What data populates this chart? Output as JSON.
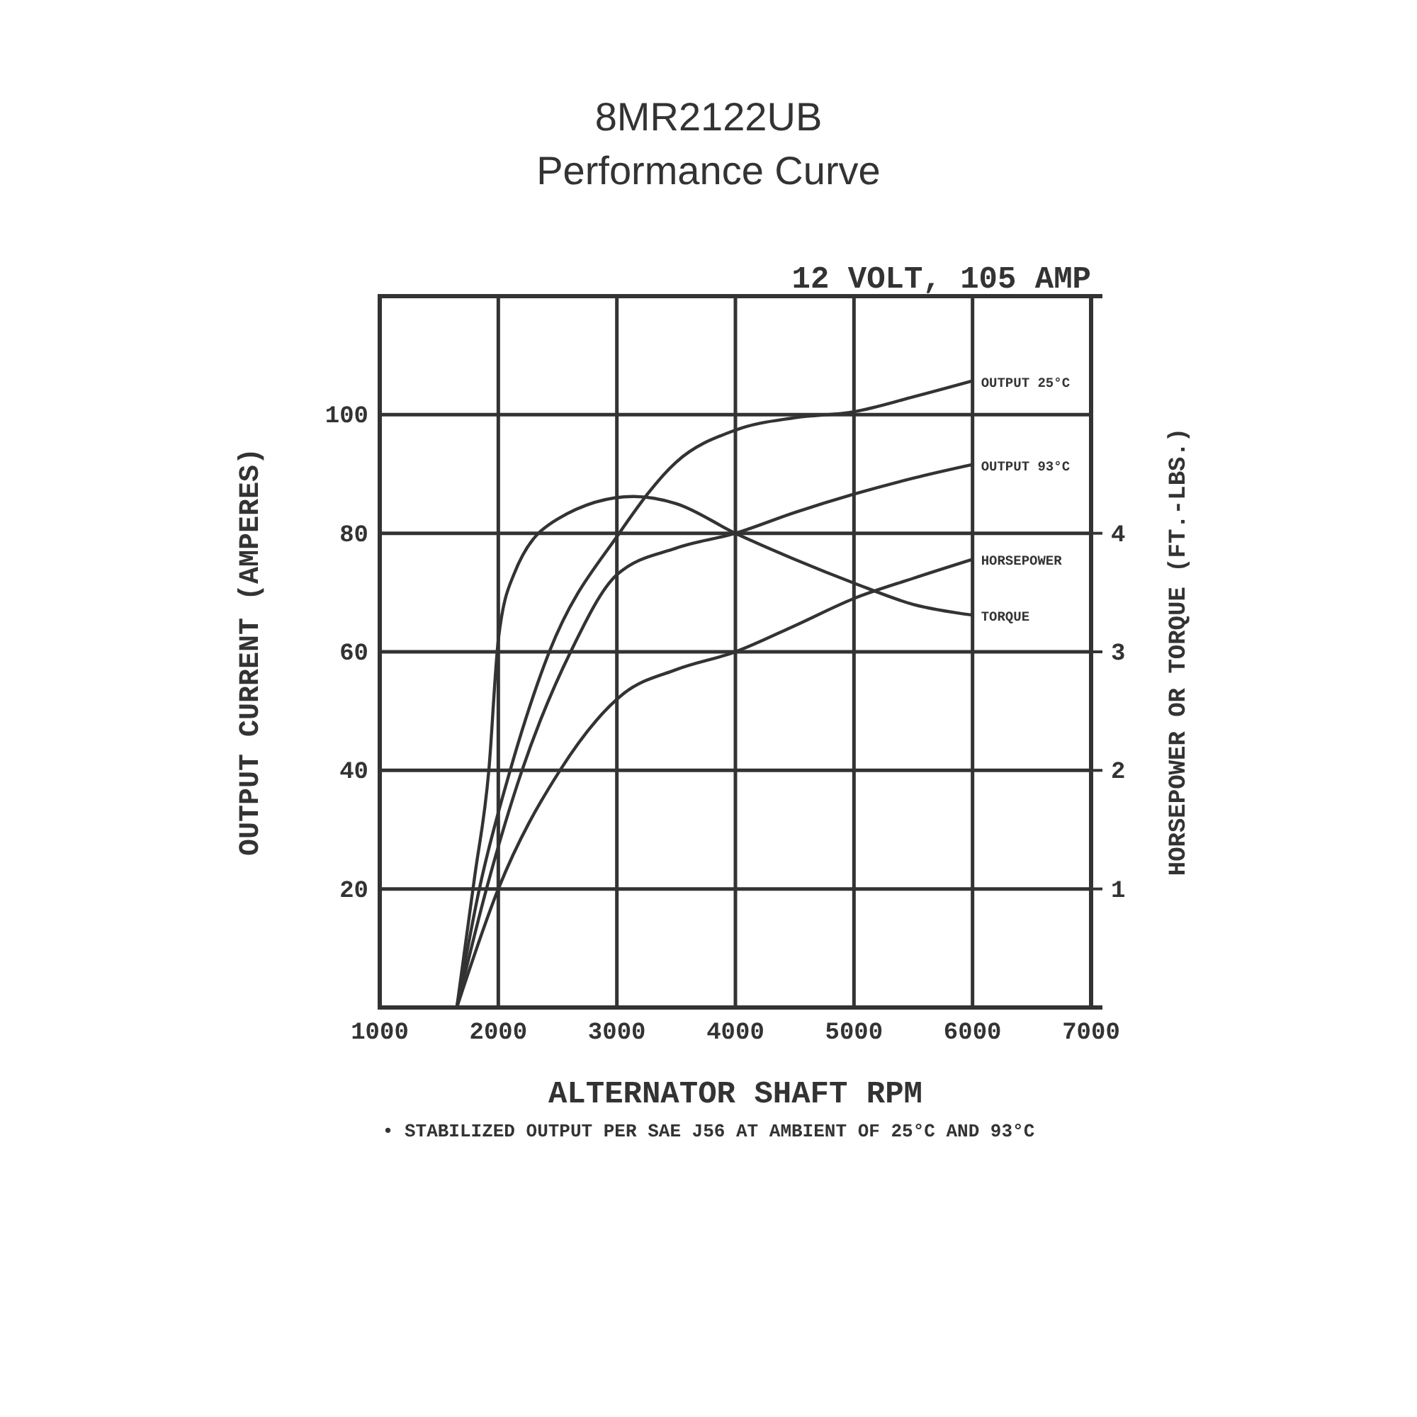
{
  "chart_data": {
    "type": "line",
    "title": "8MR2122UB",
    "subtitle": "Performance Curve",
    "xlabel": "ALTERNATOR SHAFT RPM",
    "ylabel": "OUTPUT CURRENT (AMPERES)",
    "y2label": "HORSEPOWER OR TORQUE (FT.-LBS.)",
    "annotations": [
      "12 VOLT, 105 AMP",
      "• STABILIZED OUTPUT PER SAE J56 AT AMBIENT OF 25°C AND 93°C"
    ],
    "xlim": [
      1000,
      7000
    ],
    "xticks": [
      1000,
      2000,
      3000,
      4000,
      5000,
      6000,
      7000
    ],
    "ylim": [
      0,
      120
    ],
    "yticks": [
      20,
      40,
      60,
      80,
      100
    ],
    "y2lim": [
      0,
      6
    ],
    "y2ticks": [
      1,
      2,
      3,
      4
    ],
    "grid": true,
    "marker": "none",
    "line_style": "solid",
    "series": [
      {
        "name": "OUTPUT 25°C",
        "color": "#333333",
        "x": [
          1650,
          1840,
          2100,
          2430,
          3020,
          3500,
          4000,
          4500,
          5000,
          5500,
          6000
        ],
        "values": [
          0,
          20,
          40,
          60,
          80,
          92,
          97.4,
          99.5,
          100.5,
          103,
          105.7
        ]
      },
      {
        "name": "OUTPUT 93°C",
        "color": "#333333",
        "x": [
          1650,
          1900,
          2200,
          2610,
          3000,
          3500,
          4000,
          4500,
          5000,
          5500,
          6000
        ],
        "values": [
          0,
          20,
          40,
          60,
          73,
          77.5,
          80,
          83.5,
          86.6,
          89.3,
          91.6
        ]
      },
      {
        "name": "HORSEPOWER",
        "color": "#333333",
        "axis": "y2",
        "x": [
          1650,
          2000,
          2520,
          3060,
          3500,
          4000,
          4500,
          5000,
          5500,
          6000
        ],
        "values": [
          0,
          1,
          2,
          2.65,
          2.85,
          3,
          3.22,
          3.45,
          3.62,
          3.78
        ]
      },
      {
        "name": "TORQUE",
        "color": "#333333",
        "axis": "y2",
        "x": [
          1650,
          1800,
          1920,
          2000,
          2130,
          2500,
          3140,
          3500,
          4000,
          4500,
          5000,
          5500,
          6000
        ],
        "values": [
          0,
          1.1,
          2,
          3.1,
          3.65,
          4.12,
          4.31,
          4.25,
          4,
          3.78,
          3.58,
          3.4,
          3.31
        ]
      }
    ]
  }
}
